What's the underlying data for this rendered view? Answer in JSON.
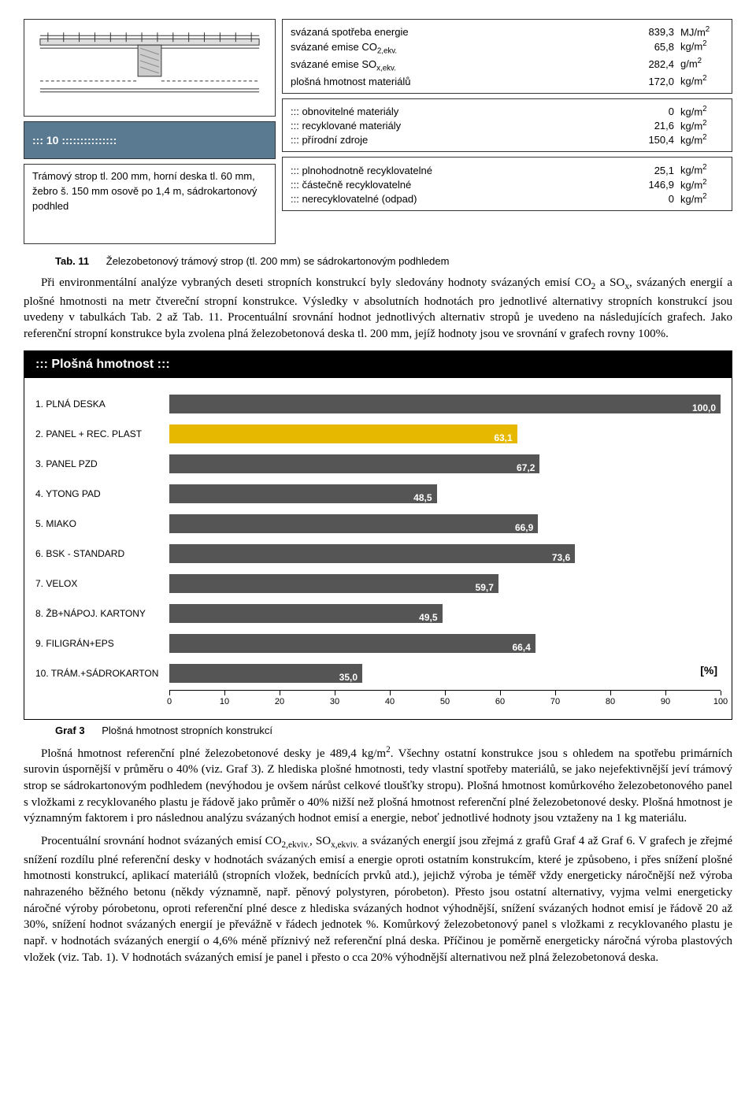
{
  "top": {
    "id_box": "::: 10 :::::::::::::::",
    "desc": "Trámový strop tl. 200 mm, horní deska tl. 60 mm, žebro š. 150 mm osově po 1,4 m, sádrokartonový podhled",
    "block1": [
      {
        "label": "svázaná spotřeba energie",
        "val": "839,3",
        "unit_html": "MJ/m<span class='sup'>2</span>"
      },
      {
        "label": "svázané emise CO<span class='sub'>2,ekv.</span>",
        "val": "65,8",
        "unit_html": "kg/m<span class='sup'>2</span>"
      },
      {
        "label": "svázané emise SO<span class='sub'>x,ekv.</span>",
        "val": "282,4",
        "unit_html": "g/m<span class='sup'>2</span>"
      },
      {
        "label": "plošná hmotnost materiálů",
        "val": "172,0",
        "unit_html": "kg/m<span class='sup'>2</span>"
      }
    ],
    "block2": [
      {
        "label": "::: obnovitelné materiály",
        "val": "0",
        "unit_html": "kg/m<span class='sup'>2</span>"
      },
      {
        "label": "::: recyklované materiály",
        "val": "21,6",
        "unit_html": "kg/m<span class='sup'>2</span>"
      },
      {
        "label": "::: přírodní zdroje",
        "val": "150,4",
        "unit_html": "kg/m<span class='sup'>2</span>"
      }
    ],
    "block3": [
      {
        "label": "::: plnohodnotně recyklovatelné",
        "val": "25,1",
        "unit_html": "kg/m<span class='sup'>2</span>"
      },
      {
        "label": "::: částečně recyklovatelné",
        "val": "146,9",
        "unit_html": "kg/m<span class='sup'>2</span>"
      },
      {
        "label": "::: nerecyklovatelné (odpad)",
        "val": "0",
        "unit_html": "kg/m<span class='sup'>2</span>"
      }
    ]
  },
  "caption1": {
    "num": "Tab. 11",
    "text": "Železobetonový trámový strop (tl. 200 mm) se sádrokartonovým podhledem"
  },
  "para1": "Při environmentální analýze vybraných deseti stropních konstrukcí byly sledovány hodnoty svázaných emisí CO<span class='sub'>2</span> a SO<span class='sub'>x</span>, svázaných energií a plošné hmotnosti na metr čtvereční stropní konstrukce. Výsledky v absolutních hodnotách pro jednotlivé alternativy stropních konstrukcí jsou uvedeny v tabulkách Tab. 2 až Tab. 11. Procentuální srovnání hodnot jednotlivých alternativ stropů je uvedeno na následujících grafech. Jako referenční stropní konstrukce byla zvolena plná železobetonová deska tl. 200 mm, jejíž hodnoty jsou ve srovnání v grafech rovny 100%.",
  "chart": {
    "title": "::: Plošná hmotnost :::",
    "pct": "[%]",
    "xmax": 100,
    "ticks": [
      0,
      10,
      20,
      30,
      40,
      50,
      60,
      70,
      80,
      90,
      100
    ],
    "bars": [
      {
        "cat": "1. PLNÁ DESKA",
        "val": 100.0,
        "hl": false,
        "label": "100,0"
      },
      {
        "cat": "2. PANEL + REC. PLAST",
        "val": 63.1,
        "hl": true,
        "label": "63,1"
      },
      {
        "cat": "3. PANEL PZD",
        "val": 67.2,
        "hl": false,
        "label": "67,2"
      },
      {
        "cat": "4. YTONG PAD",
        "val": 48.5,
        "hl": false,
        "label": "48,5"
      },
      {
        "cat": "5. MIAKO",
        "val": 66.9,
        "hl": false,
        "label": "66,9"
      },
      {
        "cat": "6. BSK - STANDARD",
        "val": 73.6,
        "hl": false,
        "label": "73,6"
      },
      {
        "cat": "7. VELOX",
        "val": 59.7,
        "hl": false,
        "label": "59,7"
      },
      {
        "cat": "8. ŽB+NÁPOJ. KARTONY",
        "val": 49.5,
        "hl": false,
        "label": "49,5"
      },
      {
        "cat": "9. FILIGRÁN+EPS",
        "val": 66.4,
        "hl": false,
        "label": "66,4"
      },
      {
        "cat": "10. TRÁM.+SÁDROKARTON",
        "val": 35.0,
        "hl": false,
        "label": "35,0"
      }
    ]
  },
  "caption2": {
    "num": "Graf 3",
    "text": "Plošná hmotnost stropních konstrukcí"
  },
  "para2": "Plošná hmotnost referenční plné železobetonové desky je 489,4 kg/m<span class='sup'>2</span>. Všechny ostatní konstrukce jsou s ohledem na spotřebu primárních surovin úspornější v průměru o 40% (viz. Graf 3). Z hlediska plošné hmotnosti, tedy vlastní spotřeby materiálů, se jako nejefektivnější jeví trámový strop se sádrokartonovým podhledem (nevýhodou je ovšem nárůst celkové tloušťky stropu). Plošná hmotnost komůrkového železobetonového panel s vložkami z recyklovaného plastu je řádově jako průměr o 40% nižší než plošná hmotnost referenční plné železobetonové desky. Plošná hmotnost je významným faktorem i pro následnou analýzu svázaných hodnot emisí a energie, neboť jednotlivé hodnoty jsou vztaženy na 1 kg materiálu.",
  "para3": "Procentuální srovnání hodnot svázaných emisí CO<span class='sub'>2,ekviv.</span>, SO<span class='sub'>x,ekviv.</span> a svázaných energií jsou zřejmá z grafů Graf 4 až Graf 6. V grafech je zřejmé snížení rozdílu plné referenční desky v hodnotách svázaných emisí a energie oproti ostatním konstrukcím, které je způsobeno, i přes snížení plošné hmotnosti konstrukcí, aplikací materiálů (stropních vložek, bednících prvků atd.), jejichž výroba je téměř vždy energeticky náročnější než výroba nahrazeného běžného betonu (někdy významně, např. pěnový polystyren, pórobeton). Přesto jsou ostatní alternativy, vyjma velmi energeticky náročné výroby pórobetonu, oproti referenční plné desce z hlediska svázaných hodnot výhodnější, snížení svázaných hodnot emisí je řádově 20 až 30%, snížení hodnot svázaných energií je převážně v řádech jednotek %. Komůrkový železobetonový panel s vložkami z recyklovaného plastu je např. v hodnotách svázaných energií o 4,6% méně příznivý než referenční plná deska. Příčinou je poměrně energeticky náročná výroba plastových vložek (viz. Tab. 1). V hodnotách svázaných emisí je panel i přesto o cca 20% výhodnější alternativou než plná železobetonová deska."
}
